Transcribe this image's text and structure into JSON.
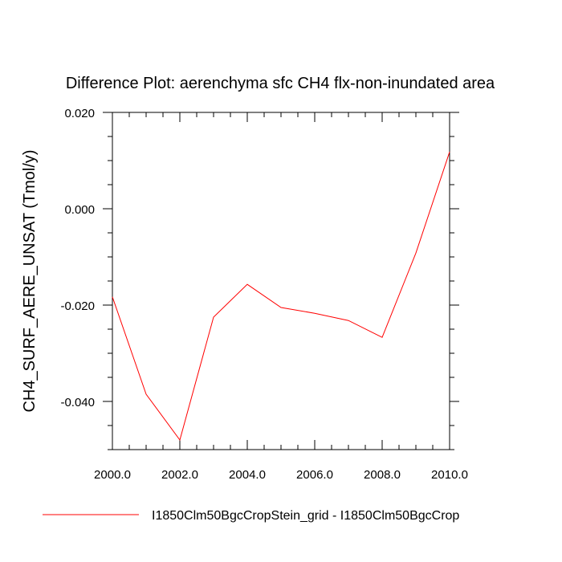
{
  "chart_data": {
    "type": "line",
    "title": "Difference Plot: aerenchyma sfc CH4 flx-non-inundated area",
    "xlabel": "",
    "ylabel": "CH4_SURF_AERE_UNSAT  (Tmol/y)",
    "xlim": [
      2000,
      2010
    ],
    "ylim": [
      -0.05,
      0.02
    ],
    "x_ticks": [
      2000,
      2002,
      2004,
      2006,
      2008,
      2010
    ],
    "x_tick_labels": [
      "2000.0",
      "2002.0",
      "2004.0",
      "2006.0",
      "2008.0",
      "2010.0"
    ],
    "y_ticks": [
      0.02,
      0.0,
      -0.02,
      -0.04
    ],
    "y_tick_labels": [
      "0.020",
      "0.000",
      "-0.020",
      "-0.040"
    ],
    "grid": false,
    "legend_position": "bottom",
    "series": [
      {
        "name": "I1850Clm50BgcCropStein_grid - I1850Clm50BgcCrop",
        "color": "#ff0000",
        "x": [
          2000,
          2001,
          2002,
          2003,
          2004,
          2005,
          2006,
          2007,
          2008,
          2009,
          2010
        ],
        "values": [
          -0.0183,
          -0.0385,
          -0.048,
          -0.0225,
          -0.0157,
          -0.0205,
          -0.0217,
          -0.0232,
          -0.0267,
          -0.0092,
          0.0118
        ]
      }
    ]
  }
}
